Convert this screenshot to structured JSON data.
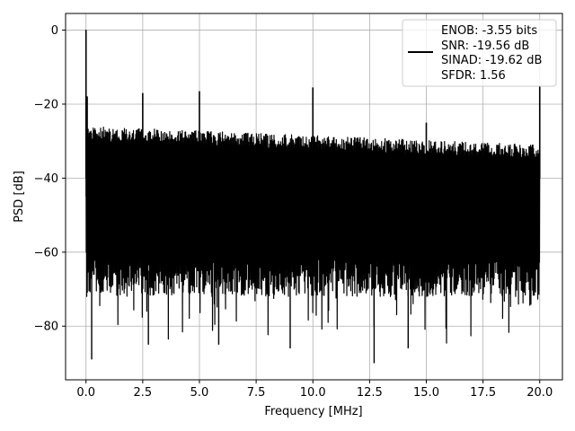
{
  "chart_data": {
    "type": "line",
    "title": "",
    "xlabel": "Frequency [MHz]",
    "ylabel": "PSD [dB]",
    "xlim": [
      -0.9,
      21.0
    ],
    "ylim": [
      -94.5,
      4.5
    ],
    "xticks": [
      0.0,
      2.5,
      5.0,
      7.5,
      10.0,
      12.5,
      15.0,
      17.5,
      20.0
    ],
    "xtick_labels": [
      "0.0",
      "2.5",
      "5.0",
      "7.5",
      "10.0",
      "12.5",
      "15.0",
      "17.5",
      "20.0"
    ],
    "yticks": [
      0,
      -20,
      -40,
      -60,
      -80
    ],
    "ytick_labels": [
      "0",
      "−20",
      "−40",
      "−60",
      "−80"
    ],
    "grid": true,
    "legend_position": "top-right",
    "legend_lines": [
      "ENOB: -3.55 bits",
      "SNR: -19.56 dB",
      "SINAD: -19.62 dB",
      "SFDR: 1.56"
    ],
    "series_color": "#000000",
    "noise_floor": {
      "upper_start": -26,
      "upper_end": -31,
      "lower_typical": -68
    },
    "peaks": [
      {
        "x": 0.0,
        "y": 0
      },
      {
        "x": 0.05,
        "y": -18
      },
      {
        "x": 2.5,
        "y": -17
      },
      {
        "x": 5.0,
        "y": -16.5
      },
      {
        "x": 10.0,
        "y": -15.5
      },
      {
        "x": 15.0,
        "y": -25
      },
      {
        "x": 20.0,
        "y": -15
      }
    ],
    "dips": [
      {
        "x": 0.25,
        "y": -89
      },
      {
        "x": 2.75,
        "y": -85
      },
      {
        "x": 5.85,
        "y": -85
      },
      {
        "x": 9.0,
        "y": -86
      },
      {
        "x": 12.7,
        "y": -90
      },
      {
        "x": 14.2,
        "y": -86
      }
    ]
  }
}
